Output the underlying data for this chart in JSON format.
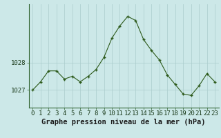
{
  "hours": [
    0,
    1,
    2,
    3,
    4,
    5,
    6,
    7,
    8,
    9,
    10,
    11,
    12,
    13,
    14,
    15,
    16,
    17,
    18,
    19,
    20,
    21,
    22,
    23
  ],
  "pressure": [
    1027.0,
    1027.3,
    1027.7,
    1027.7,
    1027.4,
    1027.5,
    1027.3,
    1027.5,
    1027.75,
    1028.2,
    1028.9,
    1029.35,
    1029.7,
    1029.55,
    1028.85,
    1028.45,
    1028.1,
    1027.55,
    1027.2,
    1026.85,
    1026.8,
    1027.15,
    1027.6,
    1027.3
  ],
  "line_color": "#2d5a1b",
  "marker_color": "#2d5a1b",
  "bg_color": "#cce8e8",
  "grid_color": "#aacccc",
  "ylabel_ticks": [
    1027,
    1028
  ],
  "xlabel": "Graphe pression niveau de la mer (hPa)",
  "xlabel_fontsize": 7.5,
  "tick_fontsize": 6.5,
  "ylim_min": 1026.35,
  "ylim_max": 1030.15,
  "xlim_min": -0.5,
  "xlim_max": 23.5
}
